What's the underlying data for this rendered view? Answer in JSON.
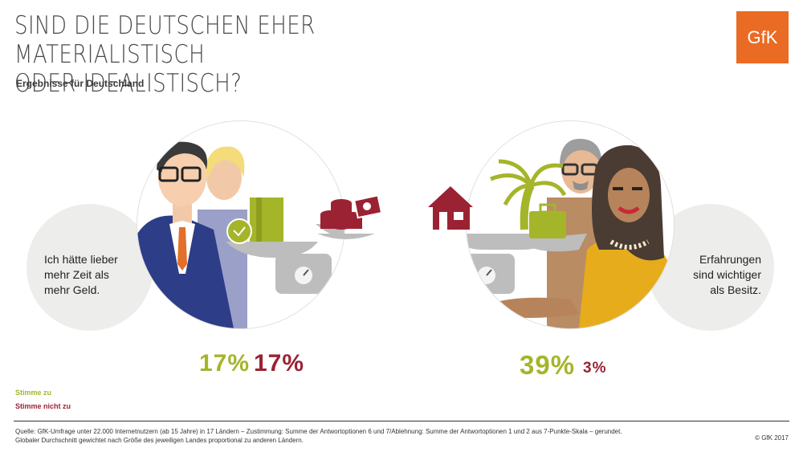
{
  "header": {
    "title_line1": "SIND DIE DEUTSCHEN EHER MATERIALISTISCH",
    "title_line2": "ODER IDEALISTISCH?",
    "subtitle": "Ergebnisse für Deutschland",
    "logo": "GfK"
  },
  "left_panel": {
    "statement": [
      "Ich hätte lieber",
      "mehr Zeit als",
      "mehr Geld."
    ],
    "agree_pct": "17%",
    "disagree_pct": "17%"
  },
  "right_panel": {
    "statement": [
      "Erfahrungen",
      "sind wichtiger",
      "als Besitz."
    ],
    "agree_pct": "39%",
    "disagree_pct": "3%"
  },
  "legend": {
    "agree": "Stimme zu",
    "disagree": "Stimme nicht zu"
  },
  "footer": {
    "source_line1": "Quelle: GfK-Umfrage unter 22.000 Internetnutzern (ab 15 Jahre) in 17 Ländern – Zustimmung: Summe der Antwortoptionen 6 und 7/Ablehnung: Summe der Antwortoptionen 1 und 2 aus 7-Punkte-Skala – gerundet.",
    "source_line2": "Globaler Durchschnitt gewichtet nach Größe des jeweiligen Landes proportional zu anderen Ländern.",
    "copyright": "© GfK 2017"
  },
  "colors": {
    "agree": "#a5b52a",
    "disagree": "#9b2233",
    "brand": "#ea6b23"
  },
  "icons": [
    "gfk-logo",
    "man-with-glasses-illustration",
    "woman-blonde-illustration",
    "balance-scale-icon",
    "book-icon",
    "clock-icon",
    "coins-icon",
    "banknote-icon",
    "house-icon",
    "palm-tree-icon",
    "suitcase-icon",
    "older-man-illustration",
    "woman-yellow-illustration"
  ]
}
